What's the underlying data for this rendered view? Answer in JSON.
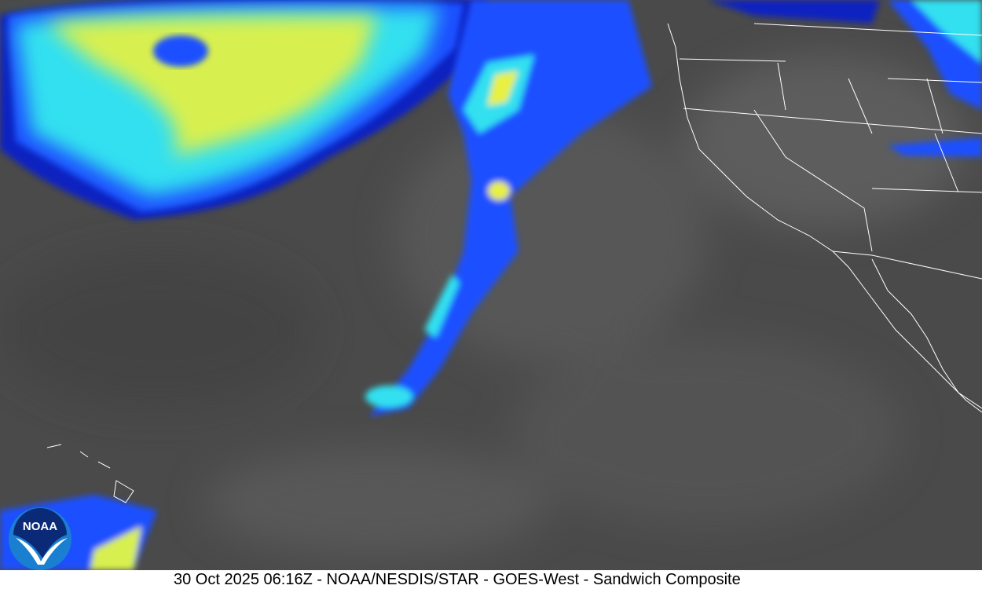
{
  "image": {
    "caption": "30 Oct 2025 06:16Z - NOAA/NESDIS/STAR - GOES-West - Sandwich Composite",
    "logo_text": "NOAA",
    "colors": {
      "background_gray": "#4a4a4a",
      "cloud_dark_blue": "#1020c0",
      "cloud_blue": "#1a50ff",
      "cloud_cyan": "#30e0f0",
      "cloud_yellow": "#e8f040",
      "borders": "#ffffff",
      "noaa_blue": "#1a7fd0",
      "noaa_navy": "#0a2a78"
    }
  }
}
